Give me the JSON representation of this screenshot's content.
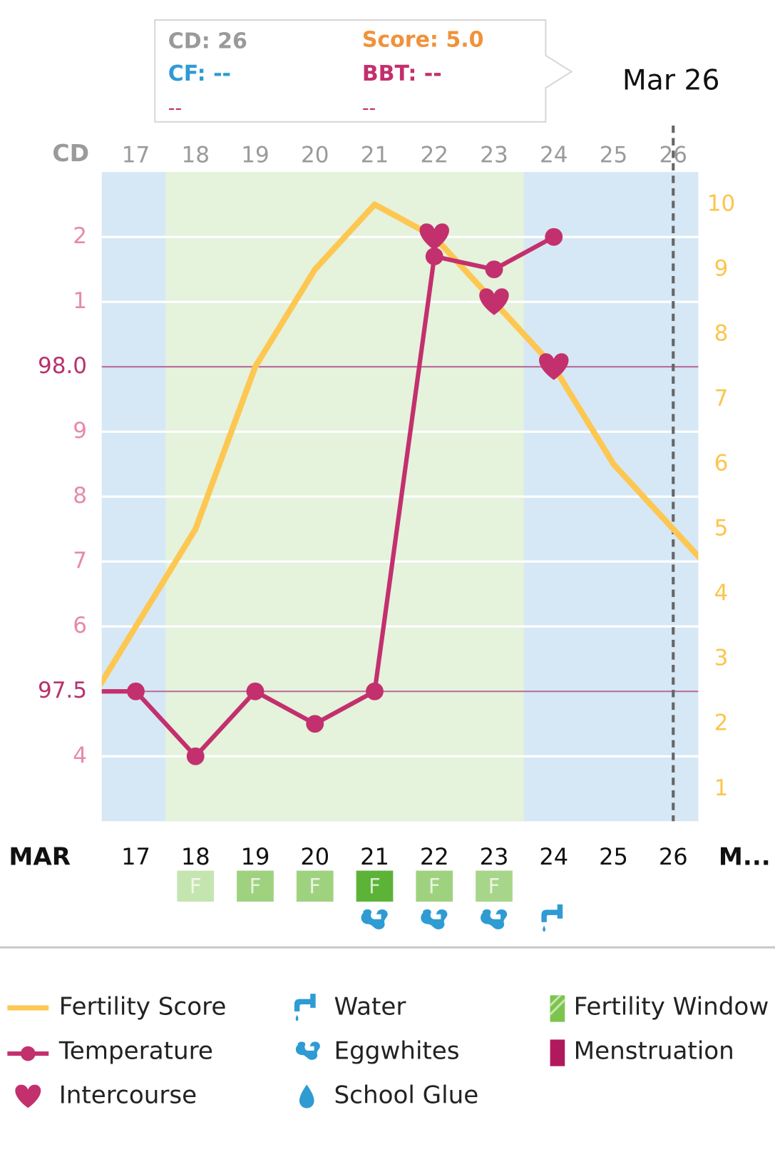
{
  "tooltip": {
    "cd": "CD: 26",
    "score": "Score: 5.0",
    "cf": "CF: --",
    "bbt": "BBT: --",
    "left_note": "--",
    "right_note": "--"
  },
  "selected_date": "Mar 26",
  "chart_data": {
    "type": "line",
    "x_axis_label": "CD",
    "x": [
      16,
      17,
      18,
      19,
      20,
      21,
      22,
      23,
      24,
      25,
      26,
      27
    ],
    "xlim": [
      16.43,
      26.42
    ],
    "xticks": [
      17,
      18,
      19,
      20,
      21,
      22,
      23,
      24,
      25,
      26
    ],
    "ylim": [
      97.3,
      98.3
    ],
    "yticks": [
      {
        "value": 98.2,
        "label": "2"
      },
      {
        "value": 98.1,
        "label": "1"
      },
      {
        "value": 98,
        "label": "98.0"
      },
      {
        "value": 97.9,
        "label": "9"
      },
      {
        "value": 97.8,
        "label": "8"
      },
      {
        "value": 97.7,
        "label": "7"
      },
      {
        "value": 97.6,
        "label": "6"
      },
      97.5,
      {
        "value": 97.4,
        "label": "4"
      }
    ],
    "y2lim": [
      0.5,
      10.5
    ],
    "y2ticks": [
      1,
      2,
      3,
      4,
      5,
      6,
      7,
      8,
      9,
      10
    ],
    "background_color": "#d6e8f5",
    "series": [
      {
        "name": "Fertility Score",
        "color": "#fdc752",
        "axis": "y2",
        "values": [
          2,
          3.5,
          5,
          7.5,
          9,
          10,
          9.5,
          8.5,
          7.5,
          6,
          5,
          4
        ]
      },
      {
        "name": "Temperature",
        "color": "#c3306e",
        "values": [
          97.5,
          97.5,
          97.4,
          97.5,
          97.45,
          97.5,
          98.17,
          98.15,
          98.2,
          null,
          null,
          null
        ]
      }
    ],
    "intercourse": {
      "name": "Intercourse",
      "color": "#c3306e",
      "x": [
        22,
        23,
        24
      ]
    },
    "selected_x": 26,
    "month_label": "MAR",
    "dates": [
      17,
      18,
      19,
      20,
      21,
      22,
      23,
      24,
      25,
      26
    ],
    "next_month_label": "M...",
    "fertility_window": {
      "name": "Fertility Window",
      "color": "#7cc44e",
      "band_color": "#e5f2dc",
      "x": [
        18,
        19,
        20,
        21,
        22,
        23
      ],
      "label": "F",
      "shades": [
        "#c5e5b0",
        "#9fd27f",
        "#9fd27f",
        "#5cb338",
        "#9fd27f",
        "#a7d68a"
      ]
    },
    "water": {
      "name": "Water",
      "color": "#2f9bd3",
      "x": [
        24
      ]
    },
    "eggwhites": {
      "name": "Eggwhites",
      "color": "#2f9bd3",
      "x": [
        21,
        22,
        23
      ]
    },
    "school_glue": {
      "name": "School Glue",
      "color": "#2f9bd3",
      "x": []
    },
    "menstruation": {
      "name": "Menstruation",
      "color": "#b0195d",
      "x": []
    }
  }
}
